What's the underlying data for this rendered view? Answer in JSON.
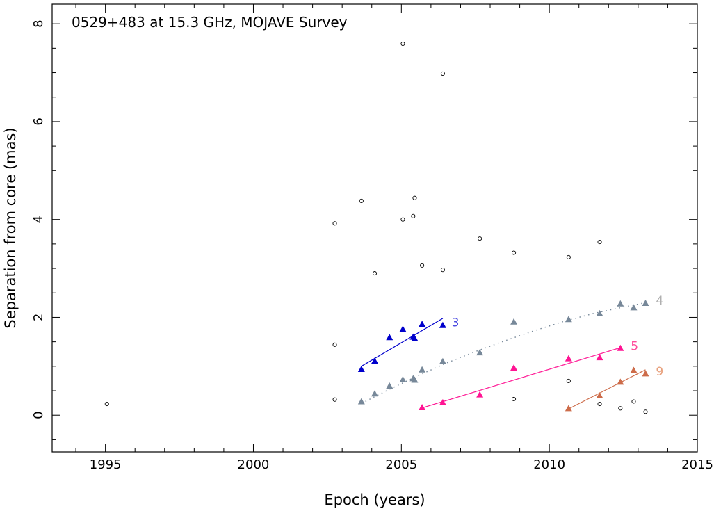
{
  "chart_data": {
    "type": "scatter",
    "title": "0529+483 at 15.3 GHz, MOJAVE Survey",
    "xlabel": "Epoch (years)",
    "ylabel": "Separation from core (mas)",
    "xlim": [
      1993.2,
      2015.0
    ],
    "ylim": [
      -0.75,
      8.4
    ],
    "xticks": [
      1995,
      2000,
      2005,
      2010,
      2015
    ],
    "xtick_labels": [
      "1995",
      "2000",
      "2005",
      "2010",
      "2015"
    ],
    "yticks": [
      0,
      2,
      4,
      6,
      8
    ],
    "ytick_labels": [
      "0",
      "2",
      "4",
      "6",
      "8"
    ],
    "unassigned_points": {
      "marker": "open-circle",
      "color": "#000000",
      "points": [
        [
          1995.05,
          0.23
        ],
        [
          2002.75,
          3.92
        ],
        [
          2002.75,
          1.44
        ],
        [
          2002.75,
          0.32
        ],
        [
          2003.65,
          4.38
        ],
        [
          2004.1,
          2.9
        ],
        [
          2005.05,
          7.59
        ],
        [
          2005.05,
          4.0
        ],
        [
          2005.4,
          4.07
        ],
        [
          2005.45,
          4.44
        ],
        [
          2005.7,
          3.06
        ],
        [
          2006.4,
          6.98
        ],
        [
          2006.4,
          2.97
        ],
        [
          2007.65,
          3.61
        ],
        [
          2008.8,
          3.32
        ],
        [
          2008.8,
          0.33
        ],
        [
          2010.65,
          3.23
        ],
        [
          2010.65,
          0.7
        ],
        [
          2011.7,
          3.54
        ],
        [
          2011.7,
          0.23
        ],
        [
          2012.4,
          0.14
        ],
        [
          2012.85,
          0.28
        ],
        [
          2013.25,
          0.07
        ]
      ]
    },
    "series": [
      {
        "name": "3",
        "color": "#0000cc",
        "fit": "linear",
        "points": [
          [
            2003.65,
            0.94
          ],
          [
            2004.1,
            1.11
          ],
          [
            2004.6,
            1.59
          ],
          [
            2005.05,
            1.76
          ],
          [
            2005.4,
            1.6
          ],
          [
            2005.45,
            1.57
          ],
          [
            2005.7,
            1.86
          ],
          [
            2006.4,
            1.84
          ]
        ],
        "fit_line": [
          [
            2003.65,
            1.0
          ],
          [
            2006.4,
            1.98
          ]
        ]
      },
      {
        "name": "4",
        "color": "#778899",
        "fit": "curved",
        "points": [
          [
            2003.65,
            0.28
          ],
          [
            2004.1,
            0.44
          ],
          [
            2004.6,
            0.6
          ],
          [
            2005.05,
            0.73
          ],
          [
            2005.4,
            0.75
          ],
          [
            2005.45,
            0.72
          ],
          [
            2005.7,
            0.93
          ],
          [
            2006.4,
            1.1
          ],
          [
            2007.65,
            1.28
          ],
          [
            2008.8,
            1.91
          ],
          [
            2010.65,
            1.96
          ],
          [
            2011.7,
            2.08
          ],
          [
            2012.4,
            2.28
          ],
          [
            2012.85,
            2.2
          ],
          [
            2013.25,
            2.29
          ]
        ],
        "fit_line": [
          [
            2003.65,
            0.24
          ],
          [
            2004.5,
            0.5
          ],
          [
            2005.5,
            0.79
          ],
          [
            2006.5,
            1.06
          ],
          [
            2007.5,
            1.3
          ],
          [
            2008.5,
            1.52
          ],
          [
            2009.5,
            1.73
          ],
          [
            2010.5,
            1.92
          ],
          [
            2011.5,
            2.08
          ],
          [
            2012.5,
            2.21
          ],
          [
            2013.25,
            2.3
          ]
        ]
      },
      {
        "name": "5",
        "color": "#ff1493",
        "fit": "linear",
        "points": [
          [
            2005.7,
            0.16
          ],
          [
            2006.4,
            0.26
          ],
          [
            2007.65,
            0.42
          ],
          [
            2008.8,
            0.97
          ],
          [
            2010.65,
            1.16
          ],
          [
            2011.7,
            1.18
          ],
          [
            2012.4,
            1.37
          ]
        ],
        "fit_line": [
          [
            2005.7,
            0.15
          ],
          [
            2012.4,
            1.38
          ]
        ]
      },
      {
        "name": "9",
        "color": "#cd6c4a",
        "fit": "linear",
        "points": [
          [
            2010.65,
            0.14
          ],
          [
            2011.7,
            0.4
          ],
          [
            2012.4,
            0.68
          ],
          [
            2012.85,
            0.92
          ],
          [
            2013.25,
            0.85
          ]
        ],
        "fit_line": [
          [
            2010.65,
            0.13
          ],
          [
            2013.25,
            0.93
          ]
        ]
      }
    ],
    "series_label_colors": {
      "3": "#4a4ae0",
      "4": "#b0b0b0",
      "5": "#ff4a9a",
      "9": "#e8a07c"
    },
    "series_label_anchors": {
      "3": [
        2006.7,
        1.9
      ],
      "4": [
        2013.6,
        2.35
      ],
      "5": [
        2012.75,
        1.42
      ],
      "9": [
        2013.6,
        0.9
      ]
    },
    "grid": false
  }
}
